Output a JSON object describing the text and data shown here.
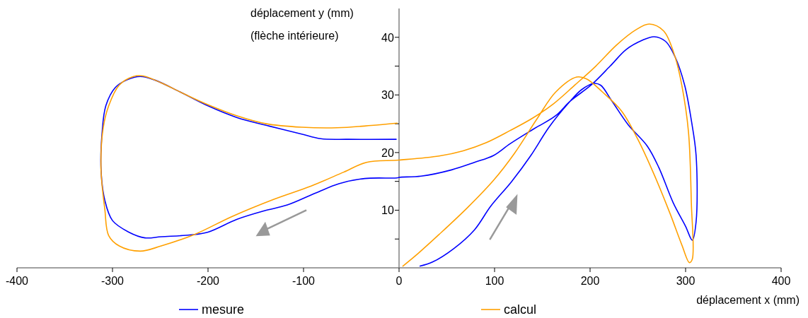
{
  "chart_data": {
    "type": "line",
    "xlabel": "déplacement x (mm)",
    "ylabel": "déplacement y (mm)\n(flèche intérieure)",
    "xlim": [
      -400,
      400
    ],
    "xticks": [
      -400,
      -300,
      -200,
      -100,
      0,
      100,
      200,
      300,
      400
    ],
    "ylim": [
      0,
      45
    ],
    "yticks": [
      {
        "value": 5,
        "label": null
      },
      10,
      {
        "value": 15,
        "label": null
      },
      20,
      {
        "value": 25,
        "label": null
      },
      30,
      {
        "value": 35,
        "label": null
      },
      40
    ],
    "legend": "bottom",
    "grid": false,
    "marker": "none",
    "line_style": "solid",
    "series": [
      {
        "name": "mesure",
        "color": "#0000ff",
        "x": [
          22,
          35,
          57,
          79,
          96,
          118,
          138,
          157,
          177,
          191,
          204,
          211,
          223,
          240,
          260,
          272,
          287,
          300,
          307,
          311,
          311,
          306,
          299,
          289,
          279,
          267,
          255,
          238,
          221,
          201,
          179,
          164,
          140,
          116,
          99,
          79,
          55,
          23,
          0,
          -2,
          -36,
          -63,
          -87,
          -117,
          -141,
          -170,
          -200,
          -219,
          -249,
          -266,
          -283,
          -300,
          -308,
          -312,
          -311,
          -307,
          -297,
          -285,
          -271,
          -256,
          -229,
          -200,
          -170,
          -136,
          -102,
          -82,
          -53,
          -3
        ],
        "values": [
          0.3,
          1,
          3.3,
          6.6,
          10.7,
          15,
          19.5,
          24.4,
          28.5,
          30.9,
          32,
          31.7,
          28.9,
          24.8,
          21.1,
          17.4,
          11.3,
          7.2,
          4.8,
          8,
          19.5,
          25.6,
          31.7,
          36.6,
          39.3,
          40.1,
          39.5,
          37.9,
          35,
          31.7,
          28.9,
          26.4,
          24,
          21.5,
          19.5,
          18.3,
          17,
          15.9,
          15.7,
          15.6,
          15.5,
          14.6,
          13,
          10.9,
          9.9,
          8.4,
          6.2,
          5.7,
          5.4,
          5.2,
          6.2,
          8.2,
          11.7,
          17,
          23.2,
          28.1,
          31.3,
          32.6,
          33.2,
          32.6,
          30.5,
          28.1,
          26.1,
          24.6,
          23.2,
          22.4,
          22.3,
          22.3
        ]
      },
      {
        "name": "calcul",
        "color": "#ffa000",
        "x": [
          4,
          20,
          42,
          72,
          99,
          121,
          145,
          164,
          186,
          196,
          213,
          233,
          250,
          267,
          284,
          296,
          304,
          307,
          306,
          303,
          296,
          289,
          277,
          262,
          248,
          228,
          206,
          184,
          162,
          140,
          116,
          91,
          67,
          42,
          0,
          -34,
          -58,
          -92,
          -131,
          -175,
          -214,
          -249,
          -271,
          -293,
          -304,
          -308,
          -312,
          -310,
          -304,
          -293,
          -278,
          -268,
          -249,
          -224,
          -200,
          -170,
          -139,
          -102,
          -65,
          -29,
          -2
        ],
        "values": [
          0.3,
          2.5,
          5.8,
          10.5,
          15.2,
          19.9,
          26,
          30.5,
          33.1,
          32.8,
          30.5,
          27.2,
          22.3,
          16.2,
          9.3,
          4,
          0.9,
          1.5,
          11.3,
          23.6,
          31.7,
          36.6,
          41.1,
          42.3,
          41.3,
          38.7,
          35,
          31.7,
          28.5,
          26,
          23.8,
          21.7,
          20.3,
          19.4,
          18.7,
          18.3,
          16.6,
          14.2,
          11.9,
          8.9,
          5.8,
          3.8,
          2.9,
          3.8,
          5.6,
          10.1,
          17,
          24,
          28.1,
          31.7,
          33.2,
          33.3,
          32.1,
          30.1,
          28.3,
          26.4,
          25,
          24.4,
          24.3,
          24.7,
          25.1
        ]
      }
    ]
  }
}
